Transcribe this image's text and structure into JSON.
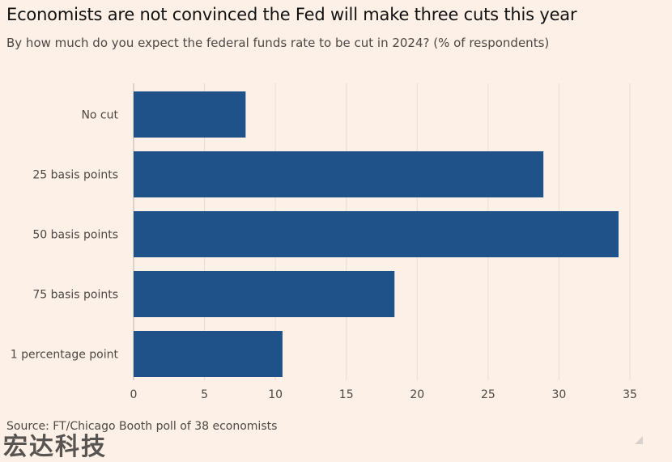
{
  "header": {
    "title": "Economists are not convinced the Fed will make three cuts this year",
    "subtitle": "By how much do you expect the federal funds rate to be cut in 2024? (% of respondents)"
  },
  "footer": {
    "source": "Source: FT/Chicago Booth poll of 38 economists",
    "watermark": "宏达科技"
  },
  "colors": {
    "bar": "#1f5289",
    "background": "#fdf0e6",
    "grid": "#e6ddd6"
  },
  "chart_data": {
    "type": "bar",
    "orientation": "horizontal",
    "categories": [
      "No cut",
      "25 basis points",
      "50 basis points",
      "75 basis points",
      "1 percentage point"
    ],
    "values": [
      7.9,
      28.9,
      34.2,
      18.4,
      10.5
    ],
    "xlim": [
      0,
      35
    ],
    "xticks": [
      0,
      5,
      10,
      15,
      20,
      25,
      30,
      35
    ],
    "grid": true,
    "title": "Economists are not convinced the Fed will make three cuts this year",
    "subtitle": "By how much do you expect the federal funds rate to be cut in 2024? (% of respondents)",
    "xlabel": "",
    "ylabel": ""
  }
}
